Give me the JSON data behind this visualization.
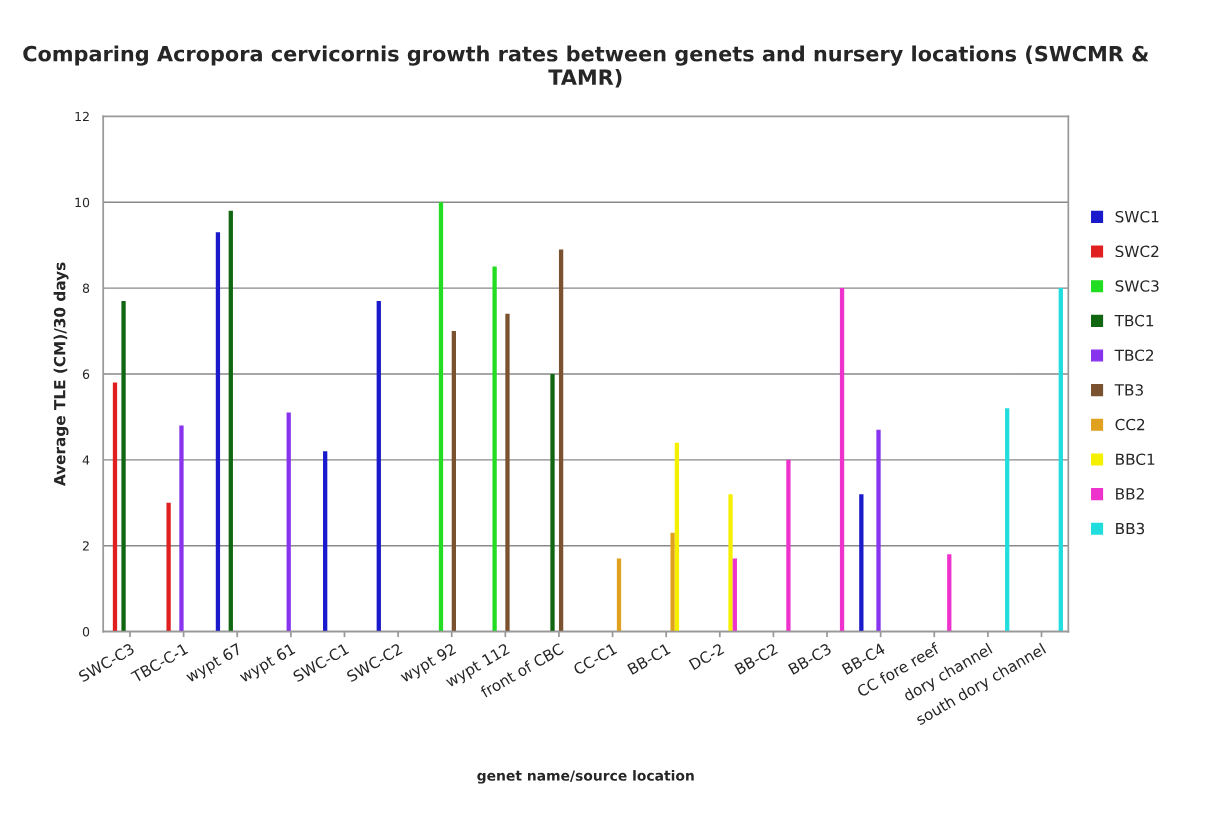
{
  "chart_data": {
    "type": "bar",
    "title": "Comparing Acropora cervicornis growth rates between genets and nursery locations (SWCMR & TAMR)",
    "xlabel": "genet name/source location",
    "ylabel": "Average TLE (CM)/30 days",
    "categories": [
      "SWC-C3",
      "TBC-C-1",
      "wypt 67",
      "wypt 61",
      "SWC-C1",
      "SWC-C2",
      "wypt 92",
      "wypt 112",
      "front of CBC",
      "CC-C1",
      "BB-C1",
      "DC-2",
      "BB-C2",
      "BB-C3",
      "BB-C4",
      "CC fore reef",
      "dory channel",
      "south dory channel"
    ],
    "series": [
      {
        "name": "SWC1",
        "color": "#1a1acc",
        "values": [
          null,
          null,
          9.3,
          null,
          4.2,
          7.7,
          null,
          null,
          null,
          null,
          null,
          null,
          null,
          null,
          3.2,
          null,
          null,
          null
        ]
      },
      {
        "name": "SWC2",
        "color": "#e02020",
        "values": [
          5.8,
          3.0,
          null,
          null,
          null,
          null,
          null,
          null,
          null,
          null,
          null,
          null,
          null,
          null,
          null,
          null,
          null,
          null
        ]
      },
      {
        "name": "SWC3",
        "color": "#22dd22",
        "values": [
          null,
          null,
          null,
          null,
          null,
          null,
          10.0,
          8.5,
          null,
          null,
          null,
          null,
          null,
          null,
          null,
          null,
          null,
          null
        ]
      },
      {
        "name": "TBC1",
        "color": "#116611",
        "values": [
          7.7,
          null,
          9.8,
          null,
          null,
          null,
          null,
          null,
          6.0,
          null,
          null,
          null,
          null,
          null,
          null,
          null,
          null,
          null
        ]
      },
      {
        "name": "TBC2",
        "color": "#8833ee",
        "values": [
          null,
          4.8,
          null,
          5.1,
          null,
          null,
          null,
          null,
          null,
          null,
          null,
          null,
          null,
          null,
          4.7,
          null,
          null,
          null
        ]
      },
      {
        "name": "TB3",
        "color": "#7a5230",
        "values": [
          null,
          null,
          null,
          null,
          null,
          null,
          7.0,
          7.4,
          8.9,
          null,
          null,
          null,
          null,
          null,
          null,
          null,
          null,
          null
        ]
      },
      {
        "name": "CC2",
        "color": "#e0a020",
        "values": [
          null,
          null,
          null,
          null,
          null,
          null,
          null,
          null,
          null,
          1.7,
          2.3,
          null,
          null,
          null,
          null,
          null,
          null,
          null
        ]
      },
      {
        "name": "BBC1",
        "color": "#f5f000",
        "values": [
          null,
          null,
          null,
          null,
          null,
          null,
          null,
          null,
          null,
          null,
          4.4,
          3.2,
          null,
          null,
          null,
          null,
          null,
          null
        ]
      },
      {
        "name": "BB2",
        "color": "#ee33cc",
        "values": [
          null,
          null,
          null,
          null,
          null,
          null,
          null,
          null,
          null,
          null,
          null,
          1.7,
          4.0,
          8.0,
          null,
          1.8,
          null,
          null
        ]
      },
      {
        "name": "BB3",
        "color": "#22dddd",
        "values": [
          null,
          null,
          null,
          null,
          null,
          null,
          null,
          null,
          null,
          null,
          null,
          null,
          null,
          null,
          null,
          null,
          5.2,
          8.0
        ]
      }
    ],
    "ylim": [
      0,
      12
    ],
    "yticks": [
      0,
      2,
      4,
      6,
      8,
      10,
      12
    ],
    "grid": "y",
    "legend": "right"
  }
}
